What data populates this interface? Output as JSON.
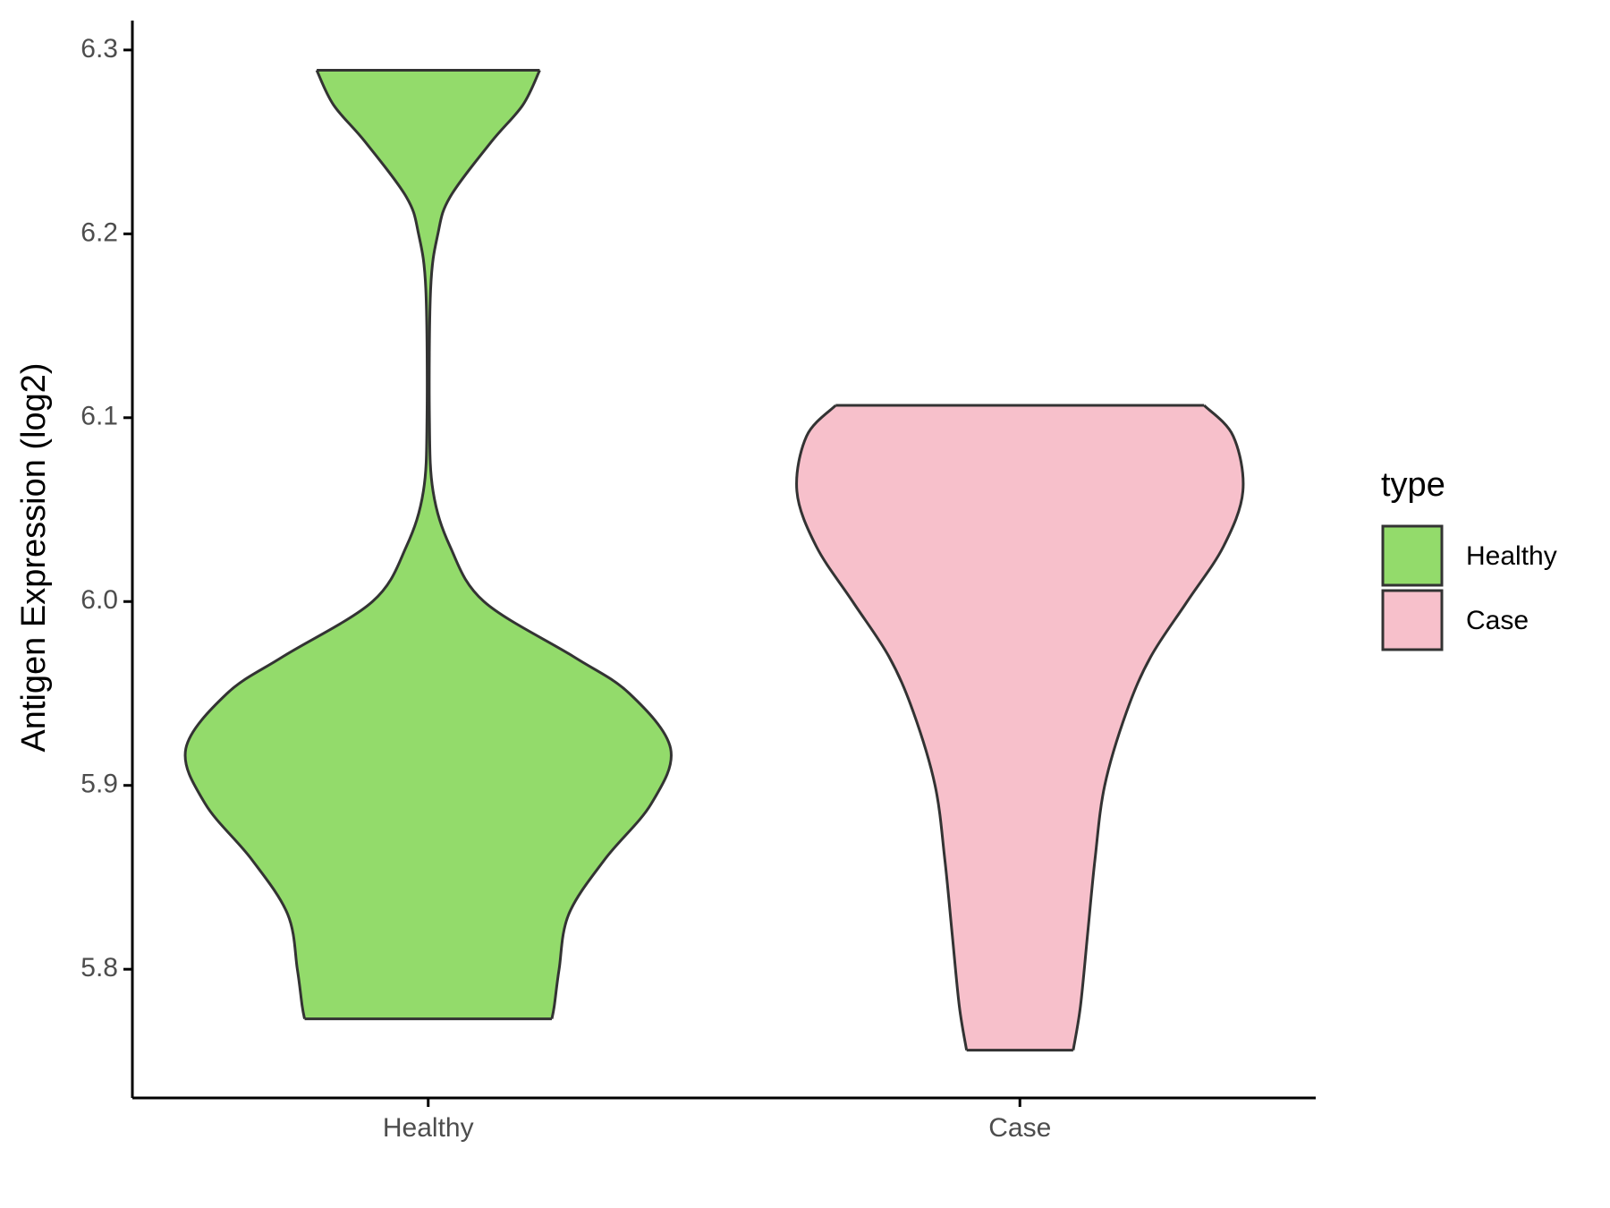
{
  "chart_data": {
    "type": "violin",
    "y_label": "Antigen Expression (log2)",
    "legend_title": "type",
    "legend_position": "right",
    "categories": [
      "Healthy",
      "Case"
    ],
    "ylim": [
      5.73,
      6.316
    ],
    "yticks": [
      5.8,
      5.9,
      {
        "value": 6,
        "label": "6.0"
      },
      6.1,
      6.2,
      6.3
    ],
    "series": [
      {
        "name": "Healthy",
        "color": "#93DB6B",
        "y": [
          6.289,
          6.27,
          6.25,
          6.22,
          6.2,
          6.17,
          6.1,
          6.06,
          6.03,
          6.0,
          5.97,
          5.95,
          5.92,
          5.89,
          5.86,
          5.83,
          5.8,
          5.78,
          5.773
        ],
        "density": [
          0.46,
          0.39,
          0.26,
          0.09,
          0.04,
          0.01,
          0.005,
          0.02,
          0.09,
          0.23,
          0.6,
          0.83,
          1.0,
          0.92,
          0.73,
          0.58,
          0.54,
          0.52,
          0.51
        ]
      },
      {
        "name": "Case",
        "color": "#F7C0CB",
        "y": [
          6.1067,
          6.09,
          6.06,
          6.03,
          6.0,
          5.97,
          5.94,
          5.9,
          5.86,
          5.82,
          5.78,
          5.756
        ],
        "density": [
          0.76,
          0.88,
          0.92,
          0.84,
          0.69,
          0.54,
          0.44,
          0.35,
          0.31,
          0.28,
          0.25,
          0.22
        ]
      }
    ]
  }
}
